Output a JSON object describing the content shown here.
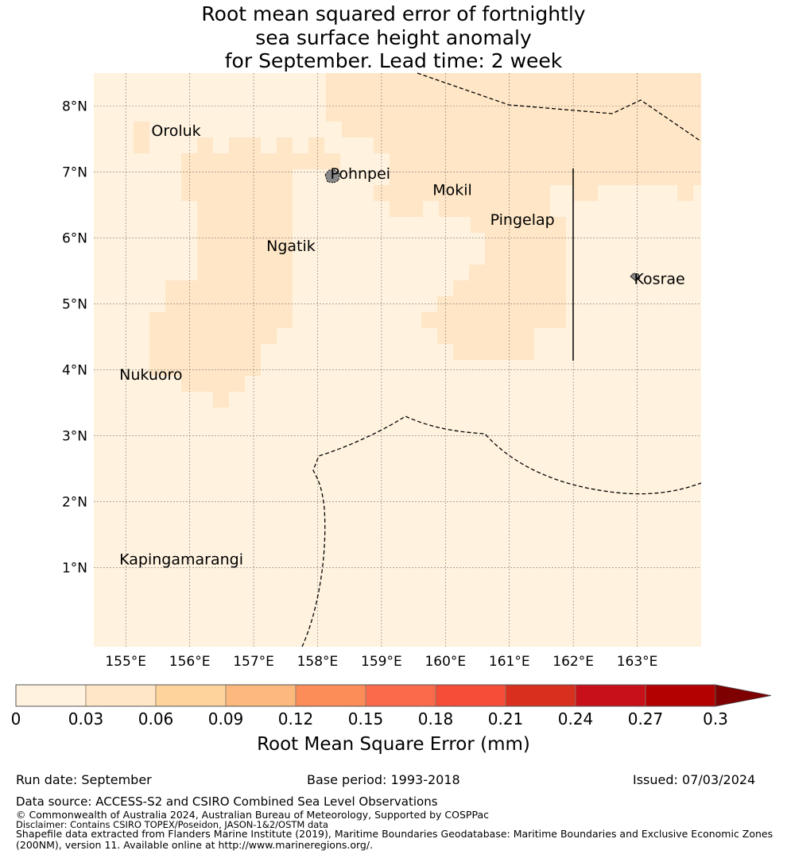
{
  "title": {
    "line1": "Root mean squared error of fortnightly",
    "line2": "sea surface height anomaly",
    "line3": "for September. Lead time: 2 week"
  },
  "map": {
    "lon_range": [
      154.5,
      164.0
    ],
    "lat_range": [
      -0.2,
      8.5
    ],
    "lon_ticks": [
      "155°E",
      "156°E",
      "157°E",
      "158°E",
      "159°E",
      "160°E",
      "161°E",
      "162°E",
      "163°E"
    ],
    "lat_ticks": [
      "1°N",
      "2°N",
      "3°N",
      "4°N",
      "5°N",
      "6°N",
      "7°N",
      "8°N"
    ],
    "gridlines": true,
    "places": [
      {
        "name": "Oroluk",
        "lon": 155.4,
        "lat": 7.55
      },
      {
        "name": "Pohnpei",
        "lon": 158.2,
        "lat": 6.9
      },
      {
        "name": "Mokil",
        "lon": 159.8,
        "lat": 6.65
      },
      {
        "name": "Pingelap",
        "lon": 160.7,
        "lat": 6.2
      },
      {
        "name": "Ngatik",
        "lon": 157.2,
        "lat": 5.8
      },
      {
        "name": "Kosrae",
        "lon": 162.95,
        "lat": 5.3
      },
      {
        "name": "Nukuoro",
        "lon": 154.9,
        "lat": 3.85
      },
      {
        "name": "Kapingamarangi",
        "lon": 154.9,
        "lat": 1.05
      }
    ],
    "field_colors": {
      "low": "#fff2df",
      "mid": "#ffe6c6"
    }
  },
  "colorbar": {
    "ticks": [
      "0",
      "0.03",
      "0.06",
      "0.09",
      "0.12",
      "0.15",
      "0.18",
      "0.21",
      "0.24",
      "0.27",
      "0.3"
    ],
    "colors": [
      "#fff2df",
      "#ffe6c6",
      "#fed49c",
      "#fdb97d",
      "#fc8d59",
      "#fb6a4a",
      "#f44d38",
      "#d7301f",
      "#c8101a",
      "#b30000",
      "#7f0000"
    ],
    "label": "Root Mean Square Error (mm)"
  },
  "footer": {
    "run_date": "Run date: September",
    "base_period": "Base period: 1993-2018",
    "issued": "Issued: 07/03/2024",
    "data_source": "Data source: ACCESS-S2 and CSIRO Combined Sea Level Observations",
    "copyright": "© Commonwealth of Australia 2024, Australian Bureau of Meteorology, Supported by COSPPac",
    "disclaimer": "Disclaimer: Contains CSIRO TOPEX/Poseidon, JASON-1&2/OSTM data",
    "shapefile1": "Shapefile data extracted from Flanders Marine Institute (2019), Maritime Boundaries Geodatabase: Maritime Boundaries and Exclusive Economic Zones",
    "shapefile2": "(200NM), version 11. Available online at http://www.marineregions.org/."
  }
}
